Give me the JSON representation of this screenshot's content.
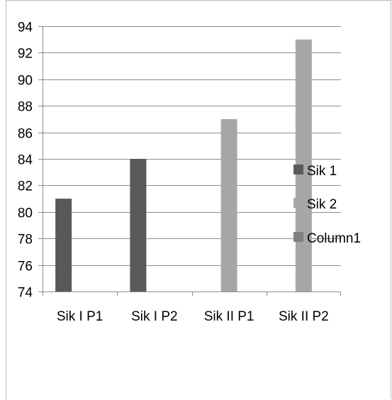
{
  "chart_data": {
    "type": "bar",
    "categories": [
      "Sik I  P1",
      "Sik I  P2",
      "Sik II P1",
      "Sik II P2"
    ],
    "series": [
      {
        "name": "Sik 1",
        "color": "#595959",
        "values": [
          81,
          84,
          null,
          null
        ]
      },
      {
        "name": "Sik 2",
        "color": "#a6a6a6",
        "values": [
          null,
          null,
          87,
          93
        ]
      },
      {
        "name": "Column1",
        "color": "#808080",
        "values": [
          null,
          null,
          null,
          null
        ]
      }
    ],
    "ylim": [
      74,
      94
    ],
    "yticks": [
      74,
      76,
      78,
      80,
      82,
      84,
      86,
      88,
      90,
      92,
      94
    ],
    "grid": true,
    "legend_position": "right",
    "title": "",
    "xlabel": "",
    "ylabel": ""
  }
}
